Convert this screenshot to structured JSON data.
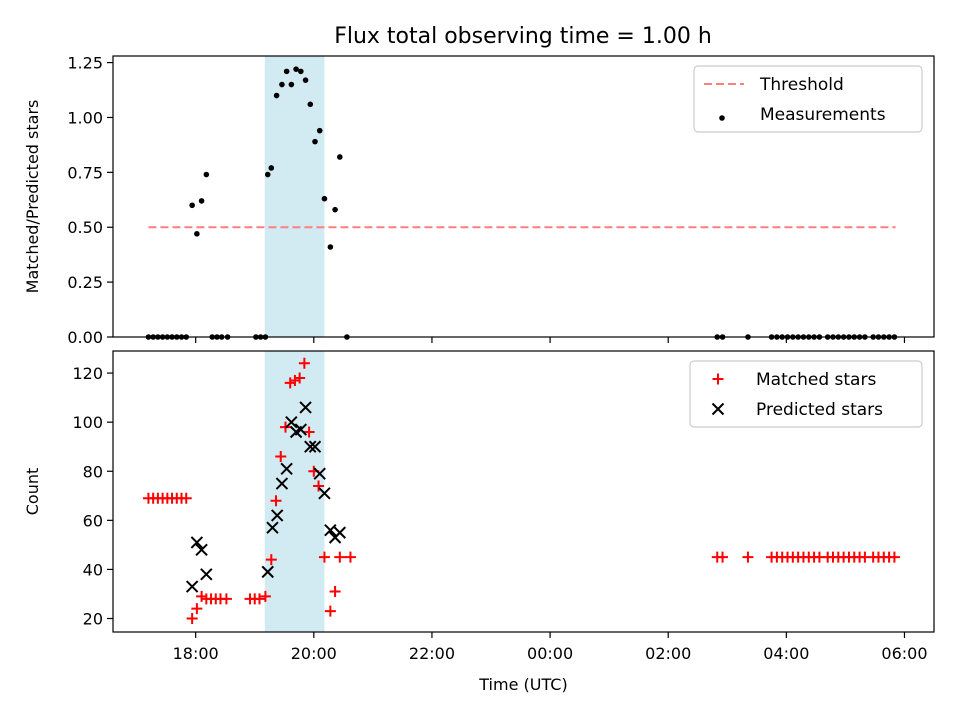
{
  "figure": {
    "title": "Flux total observing time = 1.00 h"
  },
  "chart_data": [
    {
      "type": "scatter",
      "ylabel": "Matched/Predicted stars",
      "xlabel": "",
      "x_unit": "hours relative to 00:00 UTC",
      "ylim": [
        0,
        1.28
      ],
      "yticks": [
        "0.00",
        "0.25",
        "0.50",
        "0.75",
        "1.00",
        "1.25"
      ],
      "ytick_values": [
        0,
        0.25,
        0.5,
        0.75,
        1.0,
        1.25
      ],
      "xlim": [
        -7.4,
        6.5
      ],
      "xticks_values": [
        -6,
        -4,
        -2,
        0,
        2,
        4,
        6
      ],
      "xtick_labels_shown": false,
      "threshold": {
        "name": "Threshold",
        "value": 0.5,
        "x_range": [
          -6.8,
          5.85
        ],
        "color": "#ff7f7f"
      },
      "highlight_span": {
        "x_range": [
          -4.83,
          -3.82
        ],
        "color": "#add8e6"
      },
      "legend": {
        "position": "top-right",
        "entries": [
          "Threshold",
          "Measurements"
        ]
      },
      "series": [
        {
          "name": "Measurements",
          "color": "#000000",
          "points": [
            [
              -6.8,
              0
            ],
            [
              -6.72,
              0
            ],
            [
              -6.64,
              0
            ],
            [
              -6.56,
              0
            ],
            [
              -6.48,
              0
            ],
            [
              -6.4,
              0
            ],
            [
              -6.32,
              0
            ],
            [
              -6.24,
              0
            ],
            [
              -6.16,
              0
            ],
            [
              -6.06,
              0.6
            ],
            [
              -5.98,
              0.47
            ],
            [
              -5.9,
              0.62
            ],
            [
              -5.82,
              0.74
            ],
            [
              -5.72,
              0
            ],
            [
              -5.64,
              0
            ],
            [
              -5.56,
              0
            ],
            [
              -5.46,
              0
            ],
            [
              -4.98,
              0
            ],
            [
              -4.9,
              0
            ],
            [
              -4.82,
              0
            ],
            [
              -4.78,
              0.74
            ],
            [
              -4.72,
              0.77
            ],
            [
              -4.63,
              1.1
            ],
            [
              -4.54,
              1.15
            ],
            [
              -4.46,
              1.21
            ],
            [
              -4.38,
              1.15
            ],
            [
              -4.3,
              1.22
            ],
            [
              -4.22,
              1.21
            ],
            [
              -4.14,
              1.17
            ],
            [
              -4.06,
              1.06
            ],
            [
              -3.98,
              0.89
            ],
            [
              -3.9,
              0.94
            ],
            [
              -3.82,
              0.63
            ],
            [
              -3.72,
              0.41
            ],
            [
              -3.64,
              0.58
            ],
            [
              -3.56,
              0.82
            ],
            [
              -3.44,
              0
            ],
            [
              2.83,
              0
            ],
            [
              2.92,
              0
            ],
            [
              3.35,
              0
            ],
            [
              3.75,
              0
            ],
            [
              3.84,
              0
            ],
            [
              3.93,
              0
            ],
            [
              4.02,
              0
            ],
            [
              4.11,
              0
            ],
            [
              4.2,
              0
            ],
            [
              4.29,
              0
            ],
            [
              4.38,
              0
            ],
            [
              4.47,
              0
            ],
            [
              4.56,
              0
            ],
            [
              4.7,
              0
            ],
            [
              4.79,
              0
            ],
            [
              4.88,
              0
            ],
            [
              4.97,
              0
            ],
            [
              5.06,
              0
            ],
            [
              5.15,
              0
            ],
            [
              5.24,
              0
            ],
            [
              5.33,
              0
            ],
            [
              5.47,
              0
            ],
            [
              5.56,
              0
            ],
            [
              5.65,
              0
            ],
            [
              5.74,
              0
            ],
            [
              5.83,
              0
            ]
          ]
        }
      ]
    },
    {
      "type": "scatter",
      "ylabel": "Count",
      "xlabel": "Time (UTC)",
      "x_unit": "hours relative to 00:00 UTC",
      "ylim": [
        14.5,
        129
      ],
      "yticks": [
        "20",
        "40",
        "60",
        "80",
        "100",
        "120"
      ],
      "ytick_values": [
        20,
        40,
        60,
        80,
        100,
        120
      ],
      "xlim": [
        -7.4,
        6.5
      ],
      "xticks_values": [
        -6,
        -4,
        -2,
        0,
        2,
        4,
        6
      ],
      "xticks": [
        "18:00",
        "20:00",
        "22:00",
        "00:00",
        "02:00",
        "04:00",
        "06:00"
      ],
      "highlight_span": {
        "x_range": [
          -4.83,
          -3.82
        ],
        "color": "#add8e6"
      },
      "legend": {
        "position": "top-right",
        "entries": [
          "Matched stars",
          "Predicted stars"
        ]
      },
      "series": [
        {
          "name": "Matched stars",
          "marker": "+",
          "color": "#ff0000",
          "points": [
            [
              -6.8,
              69
            ],
            [
              -6.72,
              69
            ],
            [
              -6.64,
              69
            ],
            [
              -6.56,
              69
            ],
            [
              -6.48,
              69
            ],
            [
              -6.4,
              69
            ],
            [
              -6.32,
              69
            ],
            [
              -6.24,
              69
            ],
            [
              -6.16,
              69
            ],
            [
              -6.06,
              20
            ],
            [
              -5.98,
              24
            ],
            [
              -5.9,
              29
            ],
            [
              -5.82,
              28
            ],
            [
              -5.74,
              28
            ],
            [
              -5.66,
              28
            ],
            [
              -5.58,
              28
            ],
            [
              -5.48,
              28
            ],
            [
              -5.08,
              28
            ],
            [
              -5.0,
              28
            ],
            [
              -4.92,
              28
            ],
            [
              -4.82,
              29
            ],
            [
              -4.72,
              44
            ],
            [
              -4.64,
              68
            ],
            [
              -4.56,
              86
            ],
            [
              -4.48,
              98
            ],
            [
              -4.4,
              116
            ],
            [
              -4.32,
              117
            ],
            [
              -4.24,
              118
            ],
            [
              -4.16,
              124
            ],
            [
              -4.08,
              96
            ],
            [
              -4.0,
              80
            ],
            [
              -3.92,
              74
            ],
            [
              -3.82,
              45
            ],
            [
              -3.72,
              23
            ],
            [
              -3.64,
              31
            ],
            [
              -3.56,
              45
            ],
            [
              -3.38,
              45
            ],
            [
              2.83,
              45
            ],
            [
              2.92,
              45
            ],
            [
              3.35,
              45
            ],
            [
              3.75,
              45
            ],
            [
              3.84,
              45
            ],
            [
              3.93,
              45
            ],
            [
              4.02,
              45
            ],
            [
              4.11,
              45
            ],
            [
              4.2,
              45
            ],
            [
              4.29,
              45
            ],
            [
              4.38,
              45
            ],
            [
              4.47,
              45
            ],
            [
              4.56,
              45
            ],
            [
              4.7,
              45
            ],
            [
              4.79,
              45
            ],
            [
              4.88,
              45
            ],
            [
              4.97,
              45
            ],
            [
              5.06,
              45
            ],
            [
              5.15,
              45
            ],
            [
              5.24,
              45
            ],
            [
              5.33,
              45
            ],
            [
              5.47,
              45
            ],
            [
              5.56,
              45
            ],
            [
              5.65,
              45
            ],
            [
              5.74,
              45
            ],
            [
              5.83,
              45
            ]
          ]
        },
        {
          "name": "Predicted stars",
          "marker": "x",
          "color": "#000000",
          "points": [
            [
              -6.06,
              33
            ],
            [
              -5.98,
              51
            ],
            [
              -5.9,
              48
            ],
            [
              -5.82,
              38
            ],
            [
              -4.78,
              39
            ],
            [
              -4.7,
              57
            ],
            [
              -4.62,
              62
            ],
            [
              -4.54,
              75
            ],
            [
              -4.46,
              81
            ],
            [
              -4.38,
              100
            ],
            [
              -4.3,
              96
            ],
            [
              -4.22,
              97
            ],
            [
              -4.14,
              106
            ],
            [
              -4.06,
              90
            ],
            [
              -3.98,
              90
            ],
            [
              -3.9,
              79
            ],
            [
              -3.82,
              71
            ],
            [
              -3.72,
              56
            ],
            [
              -3.64,
              53
            ],
            [
              -3.56,
              55
            ]
          ]
        }
      ]
    }
  ]
}
